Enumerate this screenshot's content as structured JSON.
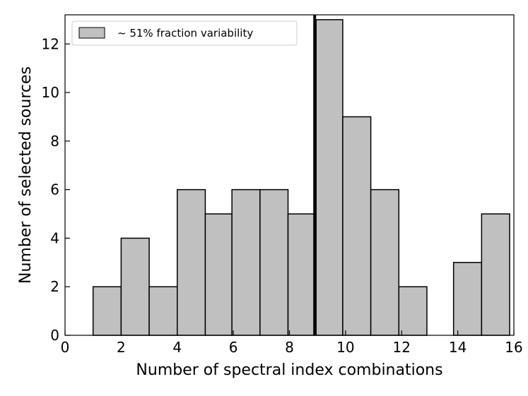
{
  "chart_data": {
    "type": "bar",
    "xlabel": "Number of spectral index combinations",
    "ylabel": "Number of selected sources",
    "xlim": [
      0,
      16
    ],
    "ylim": [
      0,
      13.2
    ],
    "xticks": [
      0,
      2,
      4,
      6,
      8,
      10,
      12,
      14,
      16
    ],
    "yticks": [
      0,
      2,
      4,
      6,
      8,
      10,
      12
    ],
    "grid": false,
    "legend": {
      "position": "upper-left",
      "entries": [
        "~ 51% fraction variability"
      ]
    },
    "bar_color": "#c0c0c0",
    "edge_color": "#000000",
    "bins": [
      {
        "start": 1.0,
        "end": 2.0,
        "value": 2
      },
      {
        "start": 2.0,
        "end": 3.0,
        "value": 4
      },
      {
        "start": 3.0,
        "end": 4.0,
        "value": 2
      },
      {
        "start": 4.0,
        "end": 5.0,
        "value": 6
      },
      {
        "start": 5.0,
        "end": 5.95,
        "value": 5
      },
      {
        "start": 5.95,
        "end": 6.95,
        "value": 6
      },
      {
        "start": 6.95,
        "end": 7.95,
        "value": 6
      },
      {
        "start": 7.95,
        "end": 8.95,
        "value": 5
      },
      {
        "start": 8.95,
        "end": 9.9,
        "value": 13
      },
      {
        "start": 9.9,
        "end": 10.9,
        "value": 9
      },
      {
        "start": 10.9,
        "end": 11.9,
        "value": 6
      },
      {
        "start": 11.9,
        "end": 12.9,
        "value": 2
      },
      {
        "start": 12.9,
        "end": 13.85,
        "value": 0
      },
      {
        "start": 13.85,
        "end": 14.85,
        "value": 3
      },
      {
        "start": 14.85,
        "end": 15.85,
        "value": 5
      }
    ],
    "vline": {
      "x": 8.9,
      "color": "#000000"
    }
  }
}
